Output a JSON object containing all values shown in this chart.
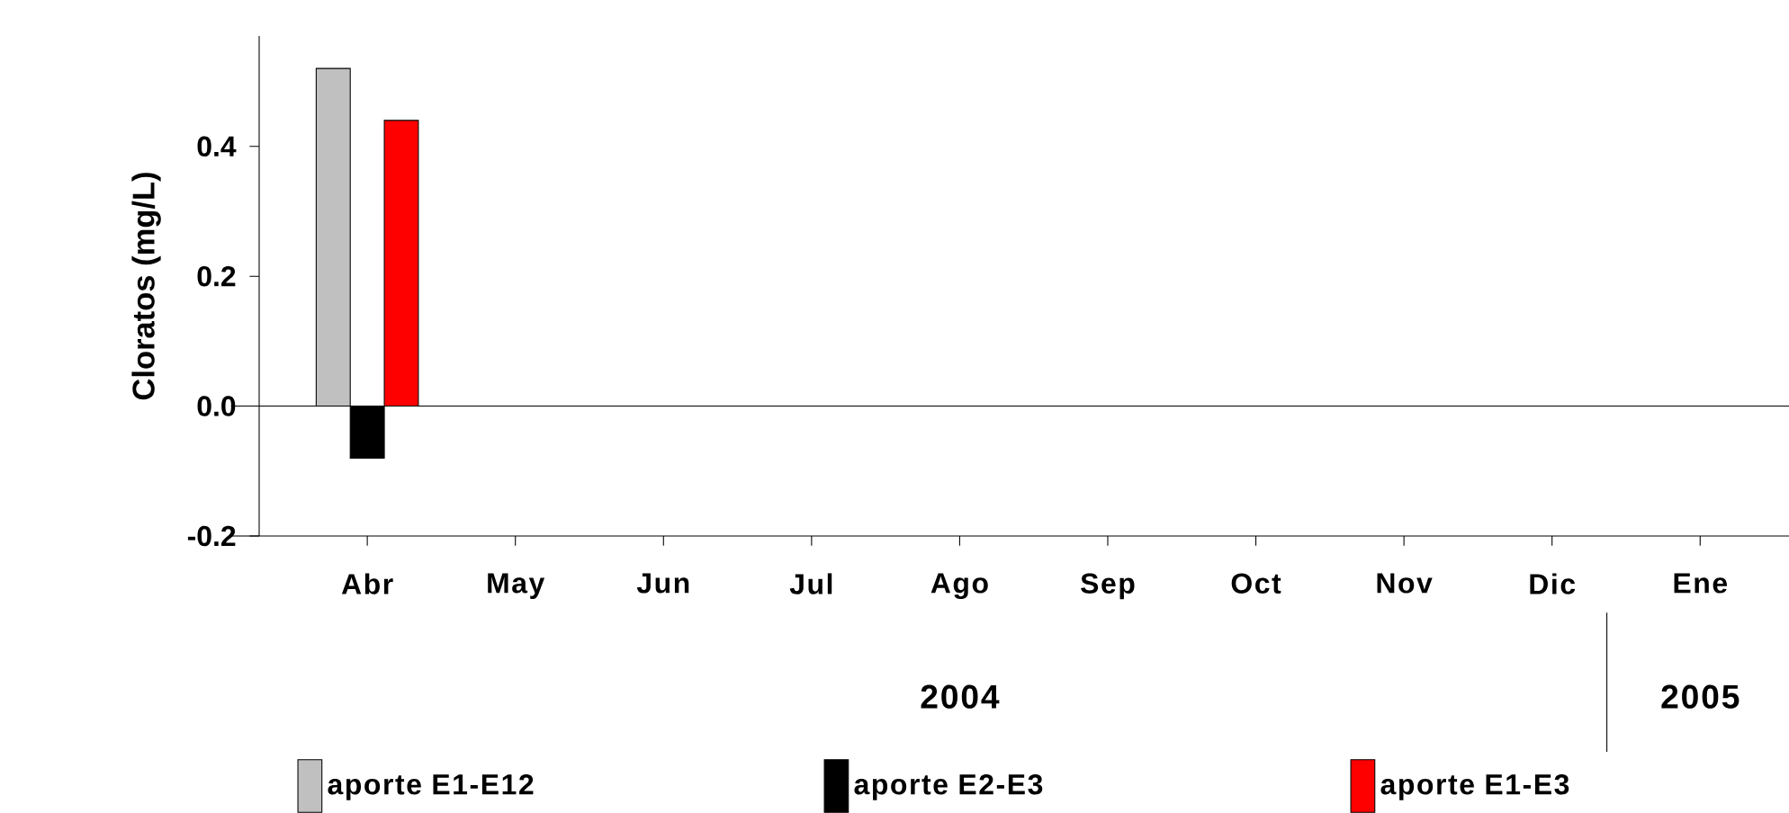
{
  "chart_data": {
    "type": "bar",
    "ylabel": "Cloratos (mg/L)",
    "categories": [
      "Abr",
      "May",
      "Jun",
      "Jul",
      "Ago",
      "Sep",
      "Oct",
      "Nov",
      "Dic",
      "Ene"
    ],
    "series": [
      {
        "name": "aporte E1-E12",
        "color": "#c0c0c0",
        "values": [
          0.52,
          null,
          null,
          null,
          null,
          null,
          null,
          null,
          null,
          null
        ]
      },
      {
        "name": "aporte E2-E3",
        "color": "#000000",
        "values": [
          -0.08,
          null,
          null,
          null,
          null,
          null,
          null,
          null,
          null,
          null
        ]
      },
      {
        "name": "aporte E1-E3",
        "color": "#ff0000",
        "values": [
          0.44,
          null,
          null,
          null,
          null,
          null,
          null,
          null,
          null,
          null
        ]
      }
    ],
    "ylim": [
      -0.2,
      0.57
    ],
    "yticks": [
      {
        "value": -0.2,
        "label": "-0.2"
      },
      {
        "value": 0,
        "label": "0.0"
      },
      {
        "value": 0.2,
        "label": "0.2"
      },
      {
        "value": 0.4,
        "label": "0.4"
      }
    ],
    "ref_lines": [
      {
        "axis": "y",
        "value": 0
      }
    ],
    "annotations": [
      "2004",
      "2005"
    ],
    "legend": "bottom"
  }
}
